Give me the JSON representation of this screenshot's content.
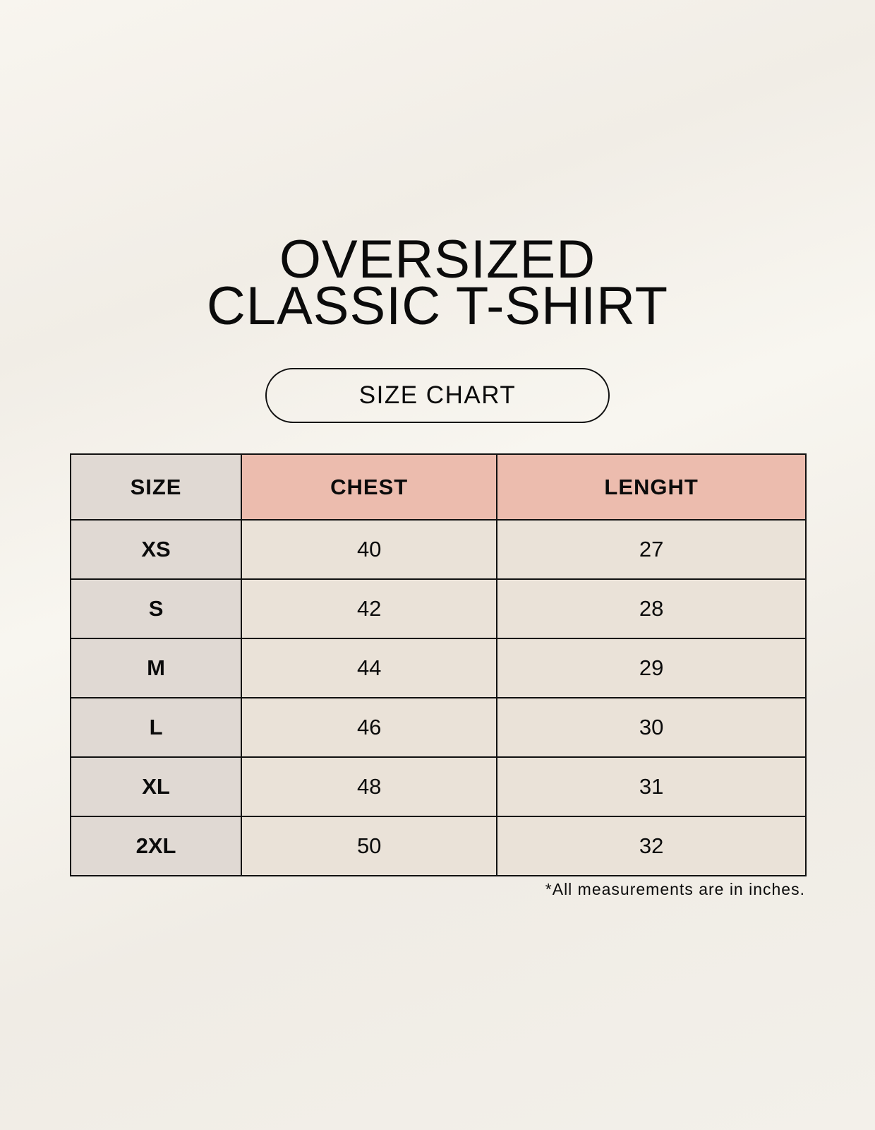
{
  "title": {
    "line1": "OVERSIZED",
    "line2": "CLASSIC T-SHIRT"
  },
  "badge": "SIZE CHART",
  "table": {
    "headers": [
      "SIZE",
      "CHEST",
      "LENGHT"
    ],
    "rows": [
      [
        "XS",
        "40",
        "27"
      ],
      [
        "S",
        "42",
        "28"
      ],
      [
        "M",
        "44",
        "29"
      ],
      [
        "L",
        "46",
        "30"
      ],
      [
        "XL",
        "48",
        "31"
      ],
      [
        "2XL",
        "50",
        "32"
      ]
    ]
  },
  "note": "*All measurements are in inches.",
  "colors": {
    "size_column": "#e0d9d3",
    "header_accent": "#ecbcae",
    "value_cells": "#eae2d8"
  }
}
